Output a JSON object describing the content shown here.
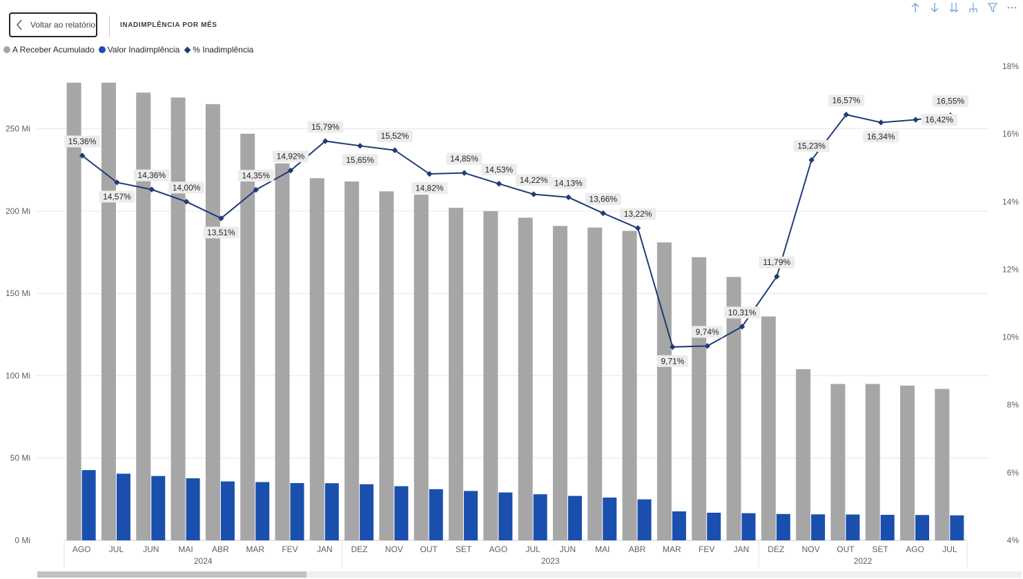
{
  "header": {
    "back_label": "Voltar ao relatório",
    "title": "INADIMPLÊNCIA POR MÊS"
  },
  "toolbar": {
    "icons": [
      "arrow-up-icon",
      "arrow-down-icon",
      "double-arrow-down-icon",
      "expand-hierarchy-icon",
      "filter-icon",
      "more-options-icon"
    ],
    "icon_color": "#7aa7d6"
  },
  "legend": {
    "items": [
      {
        "label": "A Receber Acumulado",
        "color": "#a6a6a6",
        "marker": "circle"
      },
      {
        "label": "Valor Inadimplência",
        "color": "#1a4fad",
        "marker": "circle"
      },
      {
        "label": "% Inadimplência",
        "color": "#1f3a77",
        "marker": "diamond"
      }
    ]
  },
  "chart_data": {
    "type": "bar",
    "categories": [
      "AGO",
      "JUL",
      "JUN",
      "MAI",
      "ABR",
      "MAR",
      "FEV",
      "JAN",
      "DEZ",
      "NOV",
      "OUT",
      "SET",
      "AGO",
      "JUL",
      "JUN",
      "MAI",
      "ABR",
      "MAR",
      "FEV",
      "JAN",
      "DEZ",
      "NOV",
      "OUT",
      "SET",
      "AGO",
      "JUL"
    ],
    "year_groups": [
      {
        "label": "2024",
        "count": 8
      },
      {
        "label": "2023",
        "count": 12
      },
      {
        "label": "2022",
        "count": 6
      }
    ],
    "series": [
      {
        "name": "A Receber Acumulado",
        "type": "bar",
        "axis": "left",
        "color": "#a6a6a6",
        "values": [
          278,
          278,
          272,
          269,
          265,
          247,
          229,
          220,
          218,
          212,
          210,
          202,
          200,
          196,
          191,
          190,
          188,
          181,
          172,
          160,
          136,
          104,
          95,
          95,
          94,
          92
        ]
      },
      {
        "name": "Valor Inadimplência",
        "type": "bar",
        "axis": "left",
        "color": "#1a4fad",
        "values": [
          42.7,
          40.5,
          39.1,
          37.7,
          35.8,
          35.4,
          34.8,
          34.7,
          34.1,
          32.9,
          31.1,
          30.0,
          29.1,
          28.0,
          27.0,
          26.0,
          24.9,
          17.6,
          16.8,
          16.5,
          16.0,
          15.8,
          15.7,
          15.5,
          15.4,
          15.2
        ]
      },
      {
        "name": "% Inadimplência",
        "type": "line",
        "axis": "right",
        "color": "#1f3a77",
        "values": [
          15.36,
          14.57,
          14.36,
          14.0,
          13.51,
          14.35,
          14.92,
          15.79,
          15.65,
          15.52,
          14.82,
          14.85,
          14.53,
          14.22,
          14.13,
          13.66,
          13.22,
          9.71,
          9.74,
          10.31,
          11.79,
          15.23,
          16.57,
          16.34,
          16.42,
          16.55
        ],
        "labels": [
          "15,36%",
          "14,57%",
          "14,36%",
          "14,00%",
          "13,51%",
          "14,35%",
          "14,92%",
          "15,79%",
          "15,65%",
          "15,52%",
          "14,82%",
          "14,85%",
          "14,53%",
          "14,22%",
          "14,13%",
          "13,66%",
          "13,22%",
          "9,71%",
          "9,74%",
          "10,31%",
          "11,79%",
          "15,23%",
          "16,57%",
          "16,34%",
          "16,42%",
          "16,55%"
        ],
        "label_position": [
          "above",
          "below",
          "above",
          "above",
          "below",
          "above",
          "above",
          "above",
          "below",
          "above",
          "below",
          "above",
          "above",
          "above",
          "above",
          "above",
          "above",
          "below",
          "above",
          "above",
          "above",
          "above",
          "above",
          "below",
          "right",
          "above"
        ]
      }
    ],
    "y_left": {
      "min": 0,
      "max": 288,
      "ticks": [
        0,
        50,
        100,
        150,
        200,
        250
      ],
      "tick_labels": [
        "0 Mi",
        "50 Mi",
        "100 Mi",
        "150 Mi",
        "200 Mi",
        "250 Mi"
      ]
    },
    "y_right": {
      "min": 4,
      "max": 18,
      "ticks": [
        4,
        6,
        8,
        10,
        12,
        14,
        16,
        18
      ],
      "tick_labels": [
        "4%",
        "6%",
        "8%",
        "10%",
        "12%",
        "14%",
        "16%",
        "18%"
      ]
    },
    "grid": true
  }
}
